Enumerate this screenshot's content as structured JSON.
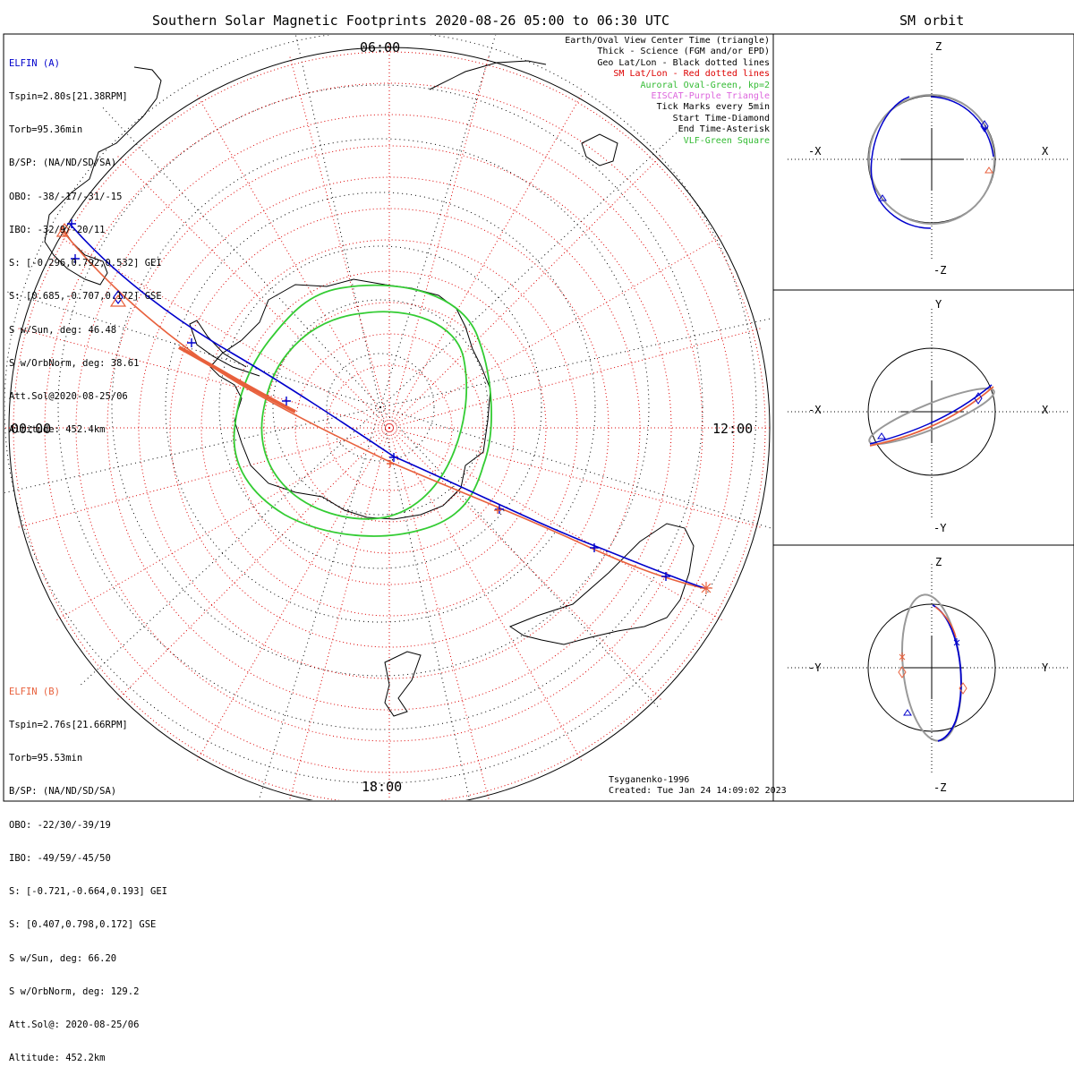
{
  "title": "Southern Solar Magnetic Footprints 2020-08-26 05:00 to 06:30 UTC",
  "orbit_title": "SM orbit",
  "elfin_a": {
    "name": "ELFIN (A)",
    "lines": [
      "Tspin=2.80s[21.38RPM]",
      "Torb=95.36min",
      "B/SP: (NA/ND/SD/SA)",
      "OBO: -38/-17/-31/-15",
      "IBO: -32/9/-20/11",
      "S: [-0.296,0.792,0.532] GEI",
      "S: [0.685,-0.707,0.172] GSE",
      "S w/Sun, deg: 46.48",
      "S w/OrbNorm, deg: 38.61",
      "Att.Sol@2020-08-25/06",
      "Altitude: 452.4km"
    ]
  },
  "elfin_b": {
    "name": "ELFIN (B)",
    "lines": [
      "Tspin=2.76s[21.66RPM]",
      "Torb=95.53min",
      "B/SP: (NA/ND/SD/SA)",
      "OBO: -22/30/-39/19",
      "IBO: -49/59/-45/50",
      "S: [-0.721,-0.664,0.193] GEI",
      "S: [0.407,0.798,0.172] GSE",
      "S w/Sun, deg: 66.20",
      "S w/OrbNorm, deg: 129.2",
      "Att.Sol@: 2020-08-25/06",
      "Altitude: 452.2km"
    ]
  },
  "legend": {
    "view_center": "Earth/Oval View Center Time (triangle)",
    "thick": "Thick - Science (FGM and/or EPD)",
    "geo": "Geo Lat/Lon - Black dotted lines",
    "sm": "SM Lat/Lon - Red dotted lines",
    "oval": "Auroral Oval-Green, kp=2",
    "eiscat": "EISCAT-Purple Triangle",
    "ticks": "Tick Marks every 5min",
    "start": "Start Time-Diamond",
    "end": "End Time-Asterisk",
    "vlf": "VLF-Green Square"
  },
  "footer": {
    "model": "Tsyganenko-1996",
    "created": "Created: Tue Jan 24 14:09:02 2023"
  },
  "map_labels": {
    "top": "06:00",
    "left": "00:00",
    "right": "12:00",
    "bottom": "18:00"
  },
  "orbit_panels": [
    {
      "horizontal_neg": "-X",
      "horizontal_pos": "X",
      "vertical_pos": "Z",
      "vertical_neg": "-Z"
    },
    {
      "horizontal_neg": "-X",
      "horizontal_pos": "X",
      "vertical_pos": "Y",
      "vertical_neg": "-Y"
    },
    {
      "horizontal_neg": "-Y",
      "horizontal_pos": "Y",
      "vertical_pos": "Z",
      "vertical_neg": "-Z"
    }
  ],
  "colors": {
    "elfin_a": "#0000cc",
    "elfin_b": "#e8603c",
    "oval": "#33cc33",
    "geo_grid": "#000000",
    "sm_grid": "#dd0000",
    "orbit_alt": "#999999"
  },
  "chart_data": {
    "type": "map",
    "projection": "southern polar, magnetic local time",
    "series": [
      {
        "name": "ELFIN (A)",
        "color": "#0000cc"
      },
      {
        "name": "ELFIN (B)",
        "color": "#e8603c"
      }
    ],
    "grid_on": true,
    "legend_placement": "top-right"
  }
}
